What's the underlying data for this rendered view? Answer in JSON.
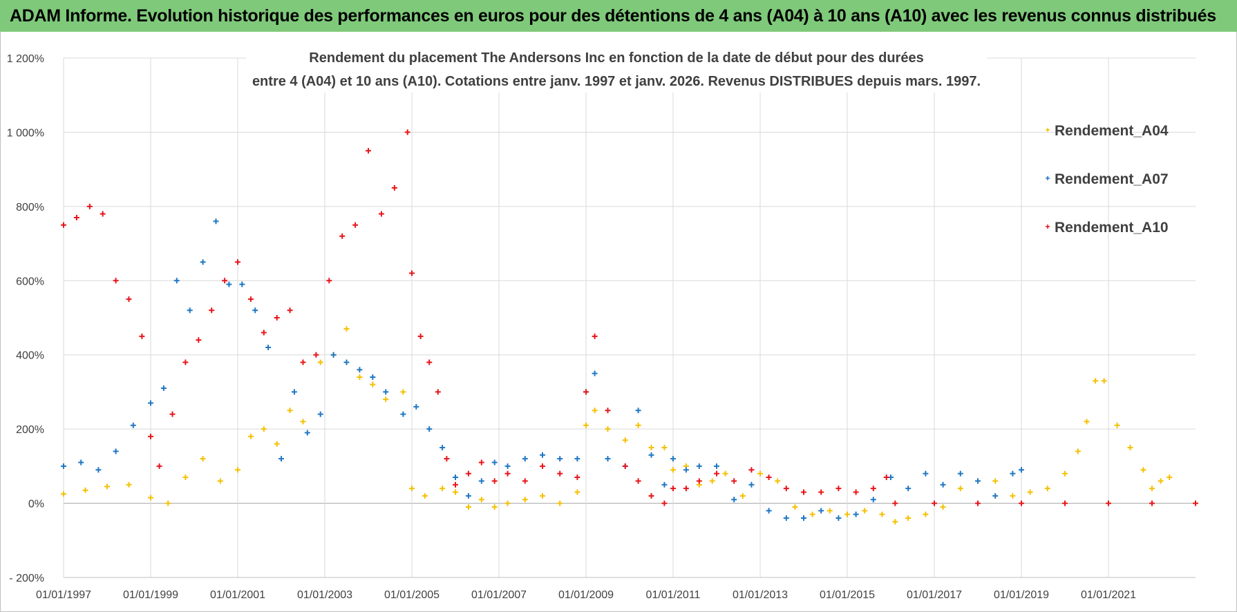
{
  "banner": {
    "title": "ADAM Informe. Evolution historique des performances en euros pour des détentions de 4 ans (A04) à 10 ans (A10) avec les revenus connus distribués",
    "background": "#7fc97a"
  },
  "chart_data": {
    "type": "scatter",
    "title_line1": "Rendement du placement The Andersons Inc en fonction de la date de début pour des durées",
    "title_line2": "entre 4 (A04) et 10 ans (A10).  Cotations entre janv. 1997 et janv. 2026.  Revenus DISTRIBUES depuis mars. 1997.",
    "xlabel": "",
    "ylabel": "",
    "xlim": [
      1997.0,
      2023.0
    ],
    "ylim": [
      -200,
      1200
    ],
    "y_ticks": [
      -200,
      0,
      200,
      400,
      600,
      800,
      1000,
      1200
    ],
    "y_tick_labels": [
      "- 200%",
      "0%",
      "200%",
      "400%",
      "600%",
      "800%",
      "1 000%",
      "1 200%"
    ],
    "x_ticks": [
      1997,
      1999,
      2001,
      2003,
      2005,
      2007,
      2009,
      2011,
      2013,
      2015,
      2017,
      2019,
      2021
    ],
    "x_tick_labels": [
      "01/01/1997",
      "01/01/1999",
      "01/01/2001",
      "01/01/2003",
      "01/01/2005",
      "01/01/2007",
      "01/01/2009",
      "01/01/2011",
      "01/01/2013",
      "01/01/2015",
      "01/01/2017",
      "01/01/2019",
      "01/01/2021"
    ],
    "grid": true,
    "legend_position": "top-right",
    "marker": "+",
    "series": [
      {
        "name": "Rendement_A04",
        "color": "#f5c000",
        "x": [
          1997.0,
          1997.5,
          1998.0,
          1998.5,
          1999.0,
          1999.4,
          1999.8,
          2000.2,
          2000.6,
          2001.0,
          2001.3,
          2001.6,
          2001.9,
          2002.2,
          2002.5,
          2002.9,
          2003.2,
          2003.5,
          2003.8,
          2004.1,
          2004.4,
          2004.8,
          2005.0,
          2005.3,
          2005.7,
          2006.0,
          2006.3,
          2006.6,
          2006.9,
          2007.2,
          2007.6,
          2008.0,
          2008.4,
          2008.8,
          2009.0,
          2009.2,
          2009.5,
          2009.9,
          2010.2,
          2010.5,
          2010.8,
          2011.0,
          2011.3,
          2011.6,
          2011.9,
          2012.2,
          2012.6,
          2013.0,
          2013.4,
          2013.8,
          2014.2,
          2014.6,
          2015.0,
          2015.4,
          2015.8,
          2016.1,
          2016.4,
          2016.8,
          2017.2,
          2017.6,
          2018.0,
          2018.4,
          2018.8,
          2019.2,
          2019.6,
          2020.0,
          2020.3,
          2020.5,
          2020.7,
          2020.9,
          2021.2,
          2021.5,
          2021.8,
          2022.0,
          2022.2,
          2022.4
        ],
        "y": [
          25,
          35,
          45,
          50,
          15,
          0,
          70,
          120,
          60,
          90,
          180,
          200,
          160,
          250,
          220,
          380,
          400,
          470,
          340,
          320,
          280,
          300,
          40,
          20,
          40,
          30,
          -10,
          10,
          -10,
          0,
          10,
          20,
          0,
          30,
          210,
          250,
          200,
          170,
          210,
          150,
          150,
          90,
          100,
          50,
          60,
          80,
          20,
          80,
          60,
          -10,
          -30,
          -20,
          -30,
          -20,
          -30,
          -50,
          -40,
          -30,
          -10,
          40,
          60,
          60,
          20,
          30,
          40,
          80,
          140,
          220,
          330,
          330,
          210,
          150,
          90,
          40,
          60,
          70
        ]
      },
      {
        "name": "Rendement_A07",
        "color": "#1f77c4",
        "x": [
          1997.0,
          1997.4,
          1997.8,
          1998.2,
          1998.6,
          1999.0,
          1999.3,
          1999.6,
          1999.9,
          2000.2,
          2000.5,
          2000.8,
          2001.1,
          2001.4,
          2001.7,
          2002.0,
          2002.3,
          2002.6,
          2002.9,
          2003.2,
          2003.5,
          2003.8,
          2004.1,
          2004.4,
          2004.8,
          2005.1,
          2005.4,
          2005.7,
          2006.0,
          2006.3,
          2006.6,
          2006.9,
          2007.2,
          2007.6,
          2008.0,
          2008.4,
          2008.8,
          2009.0,
          2009.2,
          2009.5,
          2009.9,
          2010.2,
          2010.5,
          2010.8,
          2011.0,
          2011.3,
          2011.6,
          2012.0,
          2012.4,
          2012.8,
          2013.2,
          2013.6,
          2014.0,
          2014.4,
          2014.8,
          2015.2,
          2015.6,
          2016.0,
          2016.4,
          2016.8,
          2017.2,
          2017.6,
          2018.0,
          2018.4,
          2018.8,
          2019.0
        ],
        "y": [
          100,
          110,
          90,
          140,
          210,
          270,
          310,
          600,
          520,
          650,
          760,
          590,
          590,
          520,
          420,
          120,
          300,
          190,
          240,
          400,
          380,
          360,
          340,
          300,
          240,
          260,
          200,
          150,
          70,
          20,
          60,
          110,
          100,
          120,
          130,
          120,
          120,
          300,
          350,
          120,
          100,
          250,
          130,
          50,
          120,
          90,
          100,
          100,
          10,
          50,
          -20,
          -40,
          -40,
          -20,
          -40,
          -30,
          10,
          70,
          40,
          80,
          50,
          80,
          60,
          20,
          80,
          90
        ]
      },
      {
        "name": "Rendement_A10",
        "color": "#e8141a",
        "x": [
          1997.0,
          1997.3,
          1997.6,
          1997.9,
          1998.2,
          1998.5,
          1998.8,
          1999.0,
          1999.2,
          1999.5,
          1999.8,
          2000.1,
          2000.4,
          2000.7,
          2001.0,
          2001.3,
          2001.6,
          2001.9,
          2002.2,
          2002.5,
          2002.8,
          2003.1,
          2003.4,
          2003.7,
          2004.0,
          2004.3,
          2004.6,
          2004.9,
          2005.0,
          2005.2,
          2005.4,
          2005.6,
          2005.8,
          2006.0,
          2006.3,
          2006.6,
          2006.9,
          2007.2,
          2007.6,
          2008.0,
          2008.4,
          2008.8,
          2009.0,
          2009.2,
          2009.5,
          2009.9,
          2010.2,
          2010.5,
          2010.8,
          2011.0,
          2011.3,
          2011.6,
          2012.0,
          2012.4,
          2012.8,
          2013.2,
          2013.6,
          2014.0,
          2014.4,
          2014.8,
          2015.2,
          2015.6,
          2015.9,
          2016.1,
          2017.0,
          2018.0,
          2019.0,
          2020.0,
          2021.0,
          2022.0,
          2023.0
        ],
        "y": [
          750,
          770,
          800,
          780,
          600,
          550,
          450,
          180,
          100,
          240,
          380,
          440,
          520,
          600,
          650,
          550,
          460,
          500,
          520,
          380,
          400,
          600,
          720,
          750,
          950,
          780,
          850,
          1000,
          620,
          450,
          380,
          300,
          120,
          50,
          80,
          110,
          60,
          80,
          60,
          100,
          80,
          70,
          300,
          450,
          250,
          100,
          60,
          20,
          0,
          40,
          40,
          60,
          80,
          60,
          90,
          70,
          40,
          30,
          30,
          40,
          30,
          40,
          70,
          0,
          0,
          0,
          0,
          0,
          0,
          0,
          0
        ]
      }
    ]
  }
}
